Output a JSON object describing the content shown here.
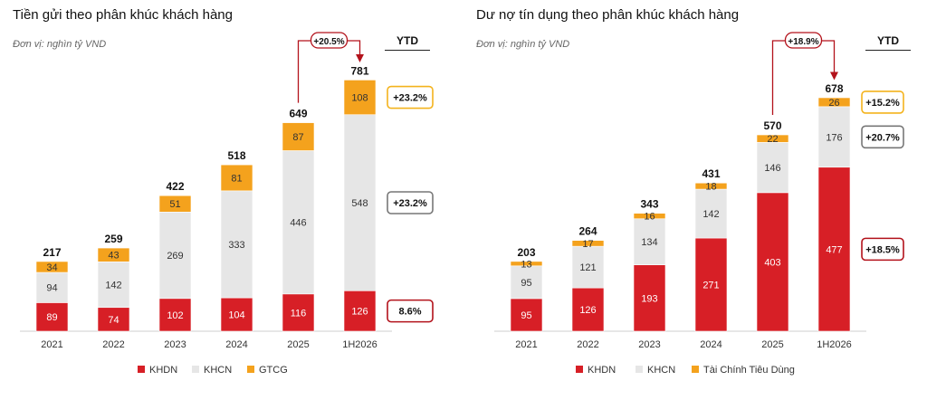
{
  "colors": {
    "KHDN": "#d71f26",
    "KHCN": "#e6e6e6",
    "GTCG": "#f4a21d",
    "TCTD": "#f4a21d",
    "red_border": "#b3121b",
    "gray_border": "#777777",
    "yellow_border": "#f4b31d"
  },
  "chart_data": [
    {
      "type": "bar",
      "stacked": true,
      "title": "Tiền gửi theo phân khúc khách hàng",
      "unit": "Đơn vị:  nghìn tỷ VND",
      "categories": [
        "2021",
        "2022",
        "2023",
        "2024",
        "2025",
        "1H2026"
      ],
      "series": [
        {
          "name": "KHDN",
          "color_key": "KHDN",
          "values": [
            89,
            74,
            102,
            104,
            116,
            126
          ]
        },
        {
          "name": "KHCN",
          "color_key": "KHCN",
          "values": [
            94,
            142,
            269,
            333,
            446,
            548
          ]
        },
        {
          "name": "GTCG",
          "color_key": "GTCG",
          "values": [
            34,
            43,
            51,
            81,
            87,
            108
          ]
        }
      ],
      "totals": [
        217,
        259,
        422,
        518,
        649,
        781
      ],
      "growth_arrow": "+20.5%",
      "ytd_header": "YTD",
      "ytd": [
        {
          "series": "GTCG",
          "label": "+23.2%",
          "border": "yellow_border"
        },
        {
          "series": "KHCN",
          "label": "+23.2%",
          "border": "gray_border"
        },
        {
          "series": "KHDN",
          "label": "8.6%",
          "border": "red_border"
        }
      ],
      "ylim": [
        0,
        900
      ],
      "legend_position": "bottom"
    },
    {
      "type": "bar",
      "stacked": true,
      "title": "Dư nợ tín dụng theo phân khúc khách hàng",
      "unit": "Đơn vị:  nghìn tỷ VND",
      "categories": [
        "2021",
        "2022",
        "2023",
        "2024",
        "2025",
        "1H2026"
      ],
      "series": [
        {
          "name": "KHDN",
          "color_key": "KHDN",
          "values": [
            95,
            126,
            193,
            271,
            403,
            477
          ]
        },
        {
          "name": "KHCN",
          "color_key": "KHCN",
          "values": [
            95,
            121,
            134,
            142,
            146,
            176
          ]
        },
        {
          "name": "Tài Chính Tiêu Dùng",
          "color_key": "TCTD",
          "values": [
            13,
            17,
            16,
            18,
            22,
            26
          ]
        }
      ],
      "totals": [
        203,
        264,
        343,
        431,
        570,
        678
      ],
      "growth_arrow": "+18.9%",
      "ytd_header": "YTD",
      "ytd": [
        {
          "series": "Tài Chính Tiêu Dùng",
          "label": "+15.2%",
          "border": "yellow_border"
        },
        {
          "series": "KHCN",
          "label": "+20.7%",
          "border": "gray_border"
        },
        {
          "series": "KHDN",
          "label": "+18.5%",
          "border": "red_border"
        }
      ],
      "ylim": [
        0,
        780
      ],
      "legend_position": "bottom"
    }
  ]
}
